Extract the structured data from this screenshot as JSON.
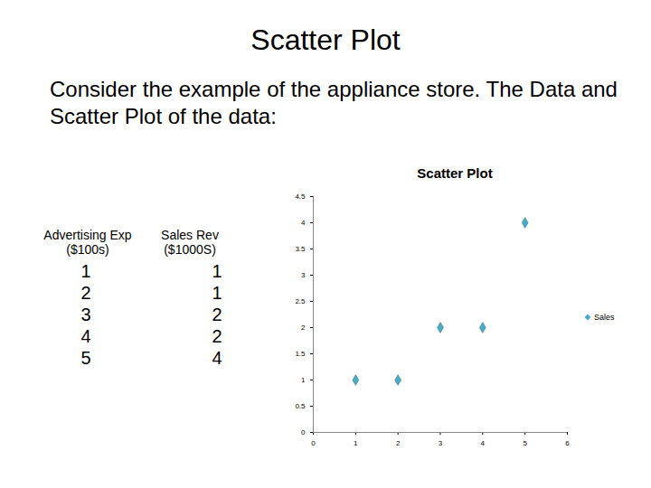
{
  "slide": {
    "title": "Scatter Plot",
    "text": "Consider the example of the appliance store. The Data and Scatter Plot of the data:",
    "table": {
      "headers": [
        [
          "Advertising Exp",
          "($100s)"
        ],
        [
          "Sales Rev",
          "($1000S)"
        ]
      ],
      "rows": [
        [
          1,
          1
        ],
        [
          2,
          1
        ],
        [
          3,
          2
        ],
        [
          4,
          2
        ],
        [
          5,
          4
        ]
      ]
    }
  },
  "chart_data": {
    "type": "scatter",
    "title": "Scatter Plot",
    "x": [
      1,
      2,
      3,
      4,
      5
    ],
    "series": [
      {
        "name": "Sales",
        "color": "#4bacc6",
        "marker": "diamond",
        "values": [
          1,
          1,
          2,
          2,
          4
        ]
      }
    ],
    "xlim": [
      0,
      6
    ],
    "xticks": [
      0,
      1,
      2,
      3,
      4,
      5,
      6
    ],
    "ylim": [
      0,
      4.5
    ],
    "yticks": [
      0,
      0.5,
      1,
      1.5,
      2,
      2.5,
      3,
      3.5,
      4,
      4.5
    ],
    "grid": false,
    "legend": "right"
  }
}
